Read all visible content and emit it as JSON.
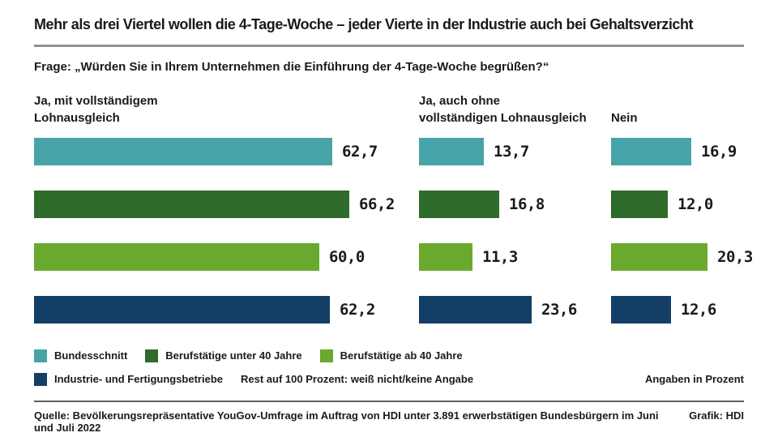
{
  "chart_data": {
    "type": "bar",
    "orientation": "horizontal",
    "title": "Mehr als drei Viertel wollen die 4-Tage-Woche – jeder Vierte in der Industrie auch bei Gehaltsverzicht",
    "subtitle": "Frage: „Würden Sie in Ihrem Unternehmen die Einführung der 4-Tage-Woche begrüßen?“",
    "groups": [
      "Ja, mit vollständigem\nLohnausgleich",
      "Ja, auch ohne\nvollständigen Lohnausgleich",
      "Nein"
    ],
    "series": [
      {
        "name": "Bundesschnitt",
        "color": "#46a4a9",
        "values": [
          62.7,
          13.7,
          16.9
        ]
      },
      {
        "name": "Berufstätige unter 40 Jahre",
        "color": "#2f6b2b",
        "values": [
          66.2,
          16.8,
          12.0
        ]
      },
      {
        "name": "Berufstätige ab 40 Jahre",
        "color": "#68a92e",
        "values": [
          60.0,
          11.3,
          20.3
        ]
      },
      {
        "name": "Industrie- und Fertigungsbetriebe",
        "color": "#133f66",
        "values": [
          62.2,
          23.6,
          12.6
        ]
      }
    ],
    "note": "Rest auf 100 Prozent: weiß nicht/keine Angabe",
    "units_label": "Angaben in Prozent",
    "decimal_separator": ",",
    "xlim": [
      0,
      70
    ],
    "grid": false,
    "legend_position": "bottom"
  },
  "footer": {
    "source": "Quelle: Bevölkerungsrepräsentative YouGov-Umfrage im Auftrag von HDI unter 3.891 erwerbstätigen Bundesbürgern im Juni und Juli 2022",
    "credit": "Grafik: HDI"
  }
}
